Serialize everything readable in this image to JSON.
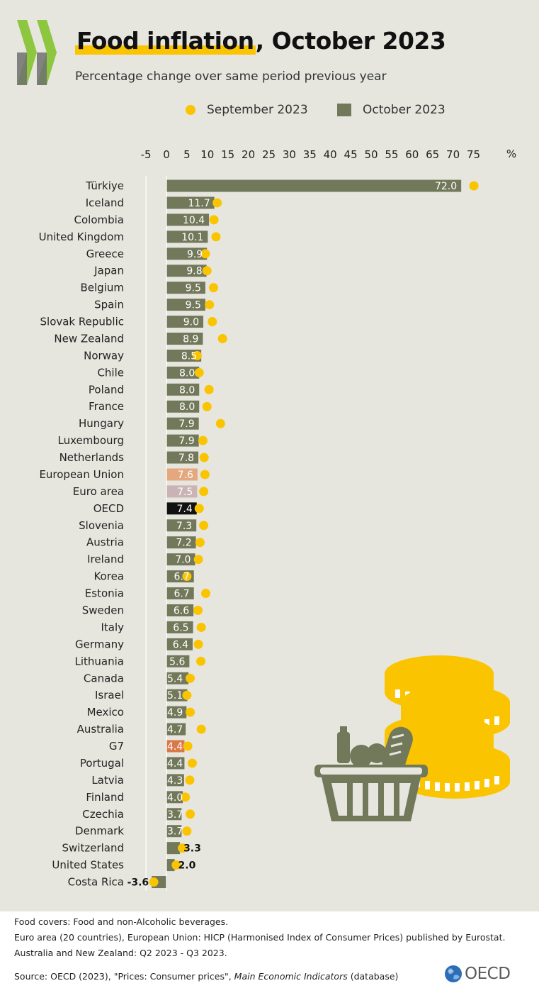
{
  "header": {
    "title_highlight": "Food inflation",
    "title_rest": ", October 2023",
    "subtitle": "Percentage change over same period previous year"
  },
  "legend": {
    "september_label": "September 2023",
    "october_label": "October 2023"
  },
  "colors": {
    "bar": "#72785a",
    "dot": "#fbc400",
    "european_union": "#e5a87e",
    "euro_area": "#c9b3b5",
    "oecd": "#111111",
    "g7": "#d9794a",
    "panel": "#e6e6df"
  },
  "chart_data": {
    "type": "bar",
    "orientation": "horizontal",
    "title": "Food inflation, October 2023",
    "subtitle": "Percentage change over same period previous year",
    "unit_label": "%",
    "xlim": [
      -5,
      75
    ],
    "xticks": [
      "-5",
      "0",
      "5",
      "10",
      "15",
      "20",
      "25",
      "30",
      "35",
      "40",
      "45",
      "50",
      "55",
      "60",
      "65",
      "70",
      "75"
    ],
    "series": [
      {
        "name": "October 2023",
        "kind": "bar"
      },
      {
        "name": "September 2023",
        "kind": "dot"
      }
    ],
    "rows": [
      {
        "country": "Türkiye",
        "october": 72.0,
        "label": "72.0",
        "september": 75.1,
        "highlight": ""
      },
      {
        "country": "Iceland",
        "october": 11.7,
        "label": "11.7",
        "september": 12.4,
        "highlight": ""
      },
      {
        "country": "Colombia",
        "october": 10.4,
        "label": "10.4",
        "september": 11.6,
        "highlight": ""
      },
      {
        "country": "United Kingdom",
        "october": 10.1,
        "label": "10.1",
        "september": 12.1,
        "highlight": ""
      },
      {
        "country": "Greece",
        "october": 9.9,
        "label": "9.9",
        "september": 9.5,
        "highlight": ""
      },
      {
        "country": "Japan",
        "october": 9.8,
        "label": "9.8",
        "september": 9.9,
        "highlight": ""
      },
      {
        "country": "Belgium",
        "october": 9.5,
        "label": "9.5",
        "september": 11.5,
        "highlight": ""
      },
      {
        "country": "Spain",
        "october": 9.5,
        "label": "9.5",
        "september": 10.5,
        "highlight": ""
      },
      {
        "country": "Slovak Republic",
        "october": 9.0,
        "label": "9.0",
        "september": 11.2,
        "highlight": ""
      },
      {
        "country": "New Zealand",
        "october": 8.9,
        "label": "8.9",
        "september": 13.7,
        "highlight": ""
      },
      {
        "country": "Norway",
        "october": 8.5,
        "label": "8.5",
        "september": 7.5,
        "highlight": ""
      },
      {
        "country": "Chile",
        "october": 8.0,
        "label": "8.0",
        "september": 8.0,
        "highlight": ""
      },
      {
        "country": "Poland",
        "october": 8.0,
        "label": "8.0",
        "september": 10.4,
        "highlight": ""
      },
      {
        "country": "France",
        "october": 8.0,
        "label": "8.0",
        "september": 9.9,
        "highlight": ""
      },
      {
        "country": "Hungary",
        "october": 7.9,
        "label": "7.9",
        "september": 13.2,
        "highlight": ""
      },
      {
        "country": "Luxembourg",
        "october": 7.9,
        "label": "7.9",
        "september": 8.9,
        "highlight": ""
      },
      {
        "country": "Netherlands",
        "october": 7.8,
        "label": "7.8",
        "september": 9.2,
        "highlight": ""
      },
      {
        "country": "European Union",
        "october": 7.6,
        "label": "7.6",
        "september": 9.4,
        "highlight": "european_union"
      },
      {
        "country": "Euro area",
        "october": 7.5,
        "label": "7.5",
        "september": 9.1,
        "highlight": "euro_area"
      },
      {
        "country": "OECD",
        "october": 7.4,
        "label": "7.4",
        "september": 8.0,
        "highlight": "oecd"
      },
      {
        "country": "Slovenia",
        "october": 7.3,
        "label": "7.3",
        "september": 9.1,
        "highlight": ""
      },
      {
        "country": "Austria",
        "october": 7.2,
        "label": "7.2",
        "september": 8.2,
        "highlight": ""
      },
      {
        "country": "Ireland",
        "october": 7.0,
        "label": "7.0",
        "september": 7.8,
        "highlight": ""
      },
      {
        "country": "Korea",
        "october": 6.7,
        "label": "6.7",
        "september": 5.0,
        "highlight": ""
      },
      {
        "country": "Estonia",
        "october": 6.7,
        "label": "6.7",
        "september": 9.6,
        "highlight": ""
      },
      {
        "country": "Sweden",
        "october": 6.6,
        "label": "6.6",
        "september": 7.7,
        "highlight": ""
      },
      {
        "country": "Italy",
        "october": 6.5,
        "label": "6.5",
        "september": 8.5,
        "highlight": ""
      },
      {
        "country": "Germany",
        "october": 6.4,
        "label": "6.4",
        "september": 7.8,
        "highlight": ""
      },
      {
        "country": "Lithuania",
        "october": 5.6,
        "label": "5.6",
        "september": 8.4,
        "highlight": ""
      },
      {
        "country": "Canada",
        "october": 5.4,
        "label": "5.4",
        "september": 5.8,
        "highlight": ""
      },
      {
        "country": "Israel",
        "october": 5.1,
        "label": "5.1",
        "september": 5.0,
        "highlight": ""
      },
      {
        "country": "Mexico",
        "october": 4.9,
        "label": "4.9",
        "september": 5.8,
        "highlight": ""
      },
      {
        "country": "Australia",
        "october": 4.7,
        "label": "4.7",
        "september": 8.5,
        "highlight": ""
      },
      {
        "country": "G7",
        "october": 4.4,
        "label": "4.4",
        "september": 5.2,
        "highlight": "g7"
      },
      {
        "country": "Portugal",
        "october": 4.4,
        "label": "4.4",
        "september": 6.3,
        "highlight": ""
      },
      {
        "country": "Latvia",
        "october": 4.3,
        "label": "4.3",
        "september": 5.7,
        "highlight": ""
      },
      {
        "country": "Finland",
        "october": 4.0,
        "label": "4.0",
        "september": 4.6,
        "highlight": ""
      },
      {
        "country": "Czechia",
        "october": 3.7,
        "label": "3.7",
        "september": 5.8,
        "highlight": ""
      },
      {
        "country": "Denmark",
        "october": 3.7,
        "label": "3.7",
        "september": 5.0,
        "highlight": ""
      },
      {
        "country": "Switzerland",
        "october": 3.3,
        "label": "3.3",
        "september": 3.9,
        "highlight": ""
      },
      {
        "country": "United States",
        "october": 2.0,
        "label": "2.0",
        "september": 2.4,
        "highlight": ""
      },
      {
        "country": "Costa Rica",
        "october": -3.6,
        "label": "-3.6",
        "september": -3.1,
        "highlight": ""
      }
    ]
  },
  "notes": {
    "line1": "Food covers: Food and non-Alcoholic beverages.",
    "line2": "Euro area (20 countries), European Union: HICP (Harmonised Index of Consumer Prices) published by Eurostat.",
    "line3": "Australia and New Zealand:  Q2 2023 - Q3 2023."
  },
  "source": {
    "prefix": "Source: OECD (2023), \"Prices: Consumer prices\", ",
    "italic": "Main Economic Indicators",
    "suffix": " (database)"
  },
  "logo": {
    "text": "OECD"
  }
}
